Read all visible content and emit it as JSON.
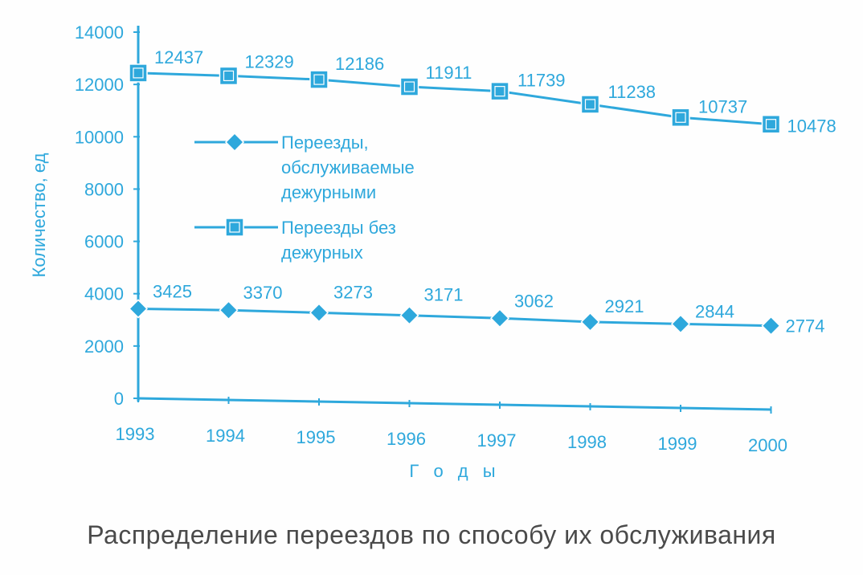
{
  "caption": "Распределение переездов по способу их обслуживания",
  "colors": {
    "accent": "#2ea8dc",
    "caption": "#4a4a4a"
  },
  "chart_data": {
    "type": "line",
    "title": "",
    "xlabel": "Г о д ы",
    "ylabel": "Количество, ед",
    "x": [
      "1993",
      "1994",
      "1995",
      "1996",
      "1997",
      "1998",
      "1999",
      "2000"
    ],
    "ylim": [
      0,
      14000
    ],
    "yticks": [
      "0",
      "2000",
      "4000",
      "6000",
      "8000",
      "10000",
      "12000",
      "14000"
    ],
    "grid": false,
    "legend_position": "center",
    "series": [
      {
        "name_lines": [
          "Переезды,",
          "обслуживаемые",
          "дежурными"
        ],
        "marker": "diamond",
        "values": [
          3425,
          3370,
          3273,
          3171,
          3062,
          2921,
          2844,
          2774
        ],
        "labels": [
          "3425",
          "3370",
          "3273",
          "3171",
          "3062",
          "2921",
          "2844",
          "2774"
        ]
      },
      {
        "name_lines": [
          "Переезды без",
          "дежурных"
        ],
        "marker": "square",
        "values": [
          12437,
          12329,
          12186,
          11911,
          11739,
          11238,
          10737,
          10478
        ],
        "labels": [
          "12437",
          "12329",
          "12186",
          "11911",
          "11739",
          "11238",
          "10737",
          "10478"
        ]
      }
    ]
  }
}
